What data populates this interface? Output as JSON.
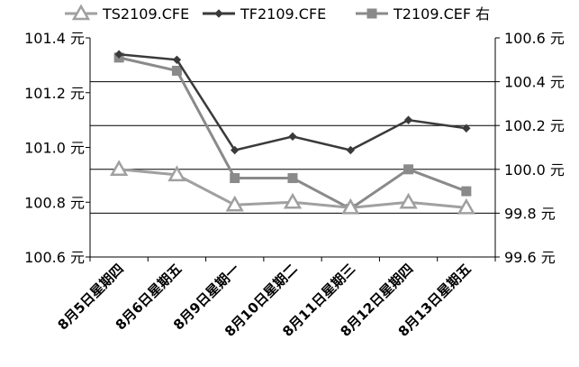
{
  "chart_data": {
    "type": "line",
    "title": "",
    "legend_position": "top",
    "grid": "horizontal",
    "categories": [
      "8月5日星期四",
      "8月6日星期五",
      "8月9日星期一",
      "8月10日星期二",
      "8月11日星期三",
      "8月12日星期四",
      "8月13日星期五"
    ],
    "left_axis": {
      "ylim": [
        100.6,
        101.4
      ],
      "ticks": [
        "101.4 元",
        "101.2 元",
        "101.0 元",
        "100.8 元",
        "100.6 元"
      ],
      "tick_values": [
        101.4,
        101.2,
        101.0,
        100.8,
        100.6
      ]
    },
    "right_axis": {
      "ylim": [
        99.6,
        100.6
      ],
      "ticks": [
        "100.6 元",
        "100.4 元",
        "100.2 元",
        "100.0 元",
        "99.8 元",
        "99.6 元"
      ],
      "tick_values": [
        100.6,
        100.4,
        100.2,
        100.0,
        99.8,
        99.6
      ]
    },
    "series": [
      {
        "name": "TS2109.CFE",
        "axis": "left",
        "color": "#a0a0a0",
        "marker": "triangle",
        "values": [
          100.92,
          100.9,
          100.79,
          100.8,
          100.78,
          100.8,
          100.78
        ]
      },
      {
        "name": "TF2109.CFE",
        "axis": "left",
        "color": "#3a3a3a",
        "marker": "diamond",
        "values": [
          101.34,
          101.32,
          100.99,
          101.04,
          100.99,
          101.1,
          101.07
        ]
      },
      {
        "name": "T2109.CEF 右",
        "axis": "right",
        "color": "#8a8a8a",
        "marker": "square",
        "values": [
          100.51,
          100.45,
          99.96,
          99.96,
          99.82,
          100.0,
          99.9
        ]
      }
    ]
  }
}
